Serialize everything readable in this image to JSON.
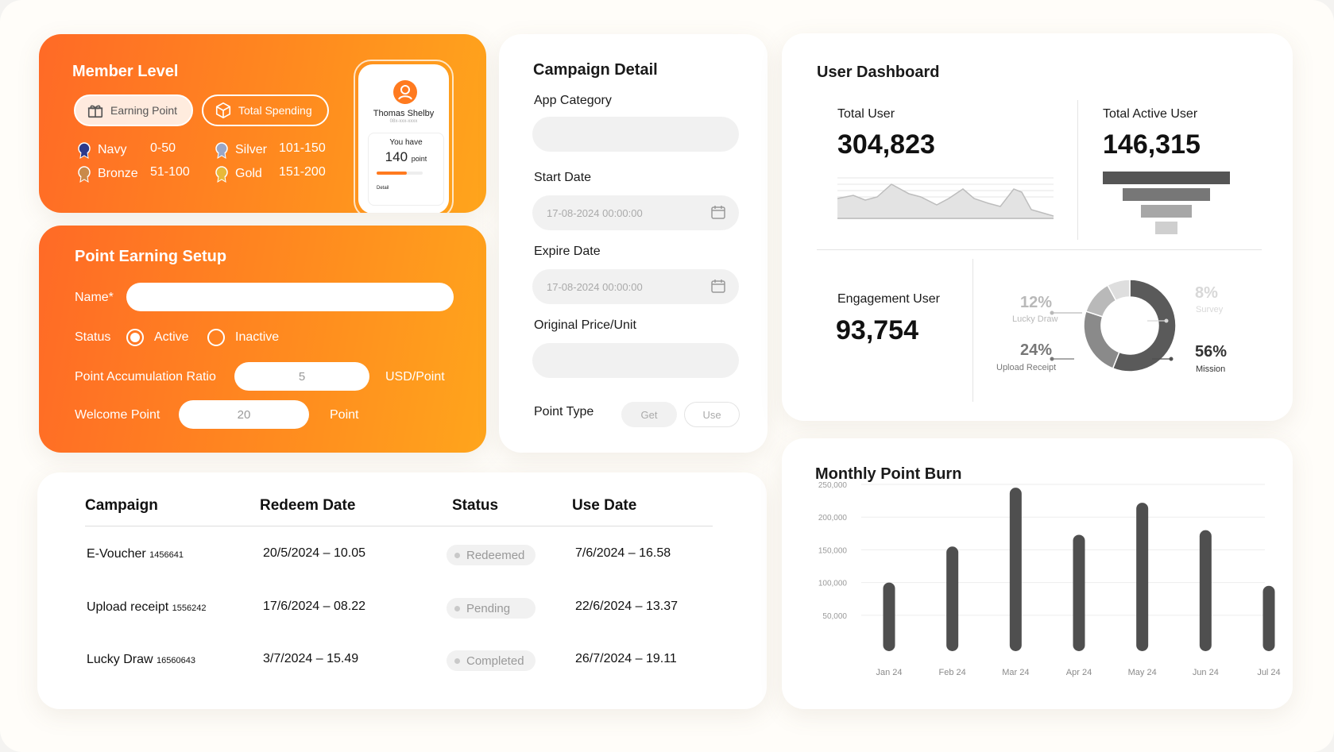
{
  "member_level": {
    "title": "Member Level",
    "tabs": [
      "Earning Point",
      "Total Spending"
    ],
    "levels": [
      {
        "name": "Navy",
        "range": "0-50"
      },
      {
        "name": "Bronze",
        "range": "51-100"
      },
      {
        "name": "Silver",
        "range": "101-150"
      },
      {
        "name": "Gold",
        "range": "151-200"
      }
    ],
    "phone": {
      "name": "Thomas Shelby",
      "phone_number": "08x-xxx-xxxx",
      "you_have": "You have",
      "points": "140",
      "points_unit": "point",
      "progress": 0.65,
      "detail": "Detail"
    }
  },
  "point_setup": {
    "title": "Point Earning Setup",
    "name_label": "Name*",
    "status_label": "Status",
    "status_options": [
      "Active",
      "Inactive"
    ],
    "status_selected": "Active",
    "ratio_label": "Point Accumulation Ratio",
    "ratio_value": "5",
    "ratio_unit": "USD/Point",
    "welcome_label": "Welcome Point",
    "welcome_value": "20",
    "welcome_unit": "Point"
  },
  "campaign_detail": {
    "title": "Campaign Detail",
    "app_category_label": "App Category",
    "start_date_label": "Start Date",
    "start_date_value": "17-08-2024 00:00:00",
    "expire_date_label": "Expire Date",
    "expire_date_value": "17-08-2024 00:00:00",
    "price_label": "Original Price/Unit",
    "point_type_label": "Point Type",
    "point_type_options": [
      "Get",
      "Use"
    ]
  },
  "user_dashboard": {
    "title": "User Dashboard",
    "total_user_label": "Total User",
    "total_user_value": "304,823",
    "total_active_label": "Total Active User",
    "total_active_value": "146,315",
    "engagement_label": "Engagement User",
    "engagement_value": "93,754",
    "engagement_breakdown": [
      {
        "label": "Mission",
        "pct": "56%",
        "value": 56,
        "color": "#5a5a5a"
      },
      {
        "label": "Upload Receipt",
        "pct": "24%",
        "value": 24,
        "color": "#8a8a8a"
      },
      {
        "label": "Lucky Draw",
        "pct": "12%",
        "value": 12,
        "color": "#b9b9b9"
      },
      {
        "label": "Survey",
        "pct": "8%",
        "value": 8,
        "color": "#dedede"
      }
    ]
  },
  "redeem_table": {
    "headers": [
      "Campaign",
      "Redeem Date",
      "Status",
      "Use Date"
    ],
    "rows": [
      {
        "campaign": "E-Voucher",
        "code": "1456641",
        "redeem_date": "20/5/2024 – 10.05",
        "status": "Redeemed",
        "use_date": "7/6/2024 – 16.58"
      },
      {
        "campaign": "Upload receipt",
        "code": "1556242",
        "redeem_date": "17/6/2024 – 08.22",
        "status": "Pending",
        "use_date": "22/6/2024 – 13.37"
      },
      {
        "campaign": "Lucky Draw",
        "code": "16560643",
        "redeem_date": "3/7/2024 – 15.49",
        "status": "Completed",
        "use_date": "26/7/2024 – 19.11"
      }
    ]
  },
  "chart_data": {
    "type": "bar",
    "title": "Monthly Point Burn",
    "categories": [
      "Jan 24",
      "Feb 24",
      "Mar 24",
      "Apr 24",
      "May 24",
      "Jun 24",
      "Jul 24"
    ],
    "values": [
      100000,
      155000,
      245000,
      173000,
      222000,
      180000,
      95000
    ],
    "yticks": [
      "250,000",
      "200,000",
      "150,000",
      "100,000",
      "50,000"
    ],
    "ytick_values": [
      250000,
      200000,
      150000,
      100000,
      50000
    ],
    "ylim": [
      0,
      250000
    ],
    "xlabel": "",
    "ylabel": "",
    "grid": true,
    "bar_color": "#4f4f4f"
  }
}
